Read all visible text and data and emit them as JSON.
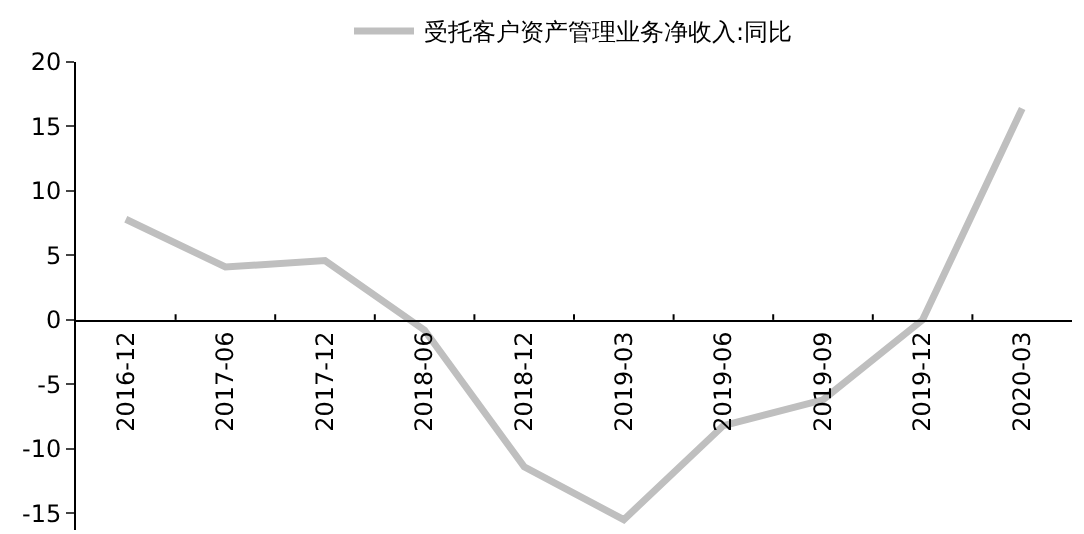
{
  "chart_data": {
    "type": "line",
    "categories": [
      "2016-12",
      "2017-06",
      "2017-12",
      "2018-06",
      "2018-12",
      "2019-03",
      "2019-06",
      "2019-09",
      "2019-12",
      "2020-03"
    ],
    "series": [
      {
        "name": "受托客户资产管理业务净收入:同比",
        "color": "#bfbfbf",
        "values": [
          7.8,
          4.1,
          4.6,
          -0.8,
          -11.4,
          -15.5,
          -8.2,
          -6.2,
          0,
          16.4
        ]
      }
    ],
    "ylim": [
      -16.3,
      20
    ],
    "yticks": [
      -15,
      -10,
      -5,
      0,
      5,
      10,
      15,
      20
    ],
    "legend": "top",
    "marker": "none",
    "line_style": "solid"
  }
}
